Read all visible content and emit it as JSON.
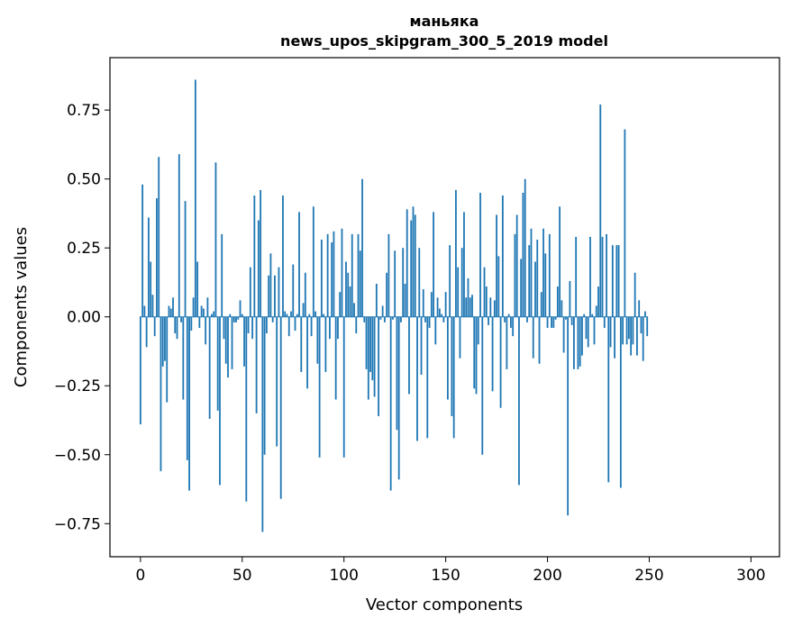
{
  "chart_data": {
    "type": "bar",
    "title": "маньяка",
    "subtitle": "news_upos_skipgram_300_5_2019 model",
    "xlabel": "Vector components",
    "ylabel": "Components values",
    "xlim": [
      -15,
      314
    ],
    "ylim": [
      -0.87,
      0.94
    ],
    "xticks": [
      0,
      50,
      100,
      150,
      200,
      250,
      300
    ],
    "xtick_labels": [
      "0",
      "50",
      "100",
      "150",
      "200",
      "250",
      "300"
    ],
    "yticks": [
      -0.75,
      -0.5,
      -0.25,
      0.0,
      0.25,
      0.5,
      0.75
    ],
    "ytick_labels": [
      "−0.75",
      "−0.50",
      "−0.25",
      "0.00",
      "0.25",
      "0.50",
      "0.75"
    ],
    "bar_color": "#1f77b4",
    "values": [
      -0.39,
      0.48,
      0.04,
      -0.11,
      0.36,
      0.2,
      0.08,
      -0.07,
      0.43,
      0.58,
      -0.56,
      -0.18,
      -0.16,
      -0.31,
      0.04,
      0.03,
      0.07,
      -0.06,
      -0.08,
      0.59,
      -0.02,
      -0.3,
      0.42,
      -0.52,
      -0.63,
      -0.05,
      0.07,
      0.86,
      0.2,
      -0.04,
      0.04,
      0.03,
      -0.1,
      0.07,
      -0.37,
      0.01,
      0.02,
      0.56,
      -0.34,
      -0.61,
      0.3,
      -0.08,
      -0.17,
      -0.22,
      0.01,
      -0.19,
      -0.02,
      -0.02,
      -0.01,
      0.06,
      0.01,
      -0.18,
      -0.67,
      -0.06,
      0.18,
      -0.08,
      0.44,
      -0.35,
      0.35,
      0.46,
      -0.78,
      -0.5,
      -0.06,
      0.15,
      0.23,
      -0.02,
      0.15,
      -0.47,
      0.18,
      -0.66,
      0.44,
      0.02,
      0.01,
      -0.07,
      0.02,
      0.19,
      -0.05,
      0.01,
      0.38,
      -0.2,
      0.05,
      0.16,
      -0.26,
      0.01,
      -0.07,
      0.4,
      0.02,
      -0.17,
      -0.51,
      0.28,
      0.01,
      -0.2,
      0.3,
      -0.08,
      0.27,
      0.31,
      -0.3,
      -0.08,
      0.09,
      0.32,
      -0.51,
      0.2,
      0.16,
      0.11,
      0.3,
      0.05,
      -0.06,
      0.3,
      0.24,
      0.5,
      -0.02,
      -0.19,
      -0.3,
      -0.2,
      -0.23,
      -0.29,
      0.12,
      -0.36,
      -0.01,
      0.04,
      -0.02,
      0.16,
      0.3,
      -0.63,
      -0.01,
      0.24,
      -0.41,
      -0.59,
      -0.02,
      0.25,
      0.12,
      0.39,
      -0.28,
      0.35,
      0.4,
      0.37,
      -0.45,
      0.25,
      -0.21,
      0.1,
      -0.02,
      -0.44,
      -0.04,
      0.09,
      0.38,
      -0.1,
      0.07,
      0.03,
      0.01,
      -0.02,
      0.09,
      -0.3,
      0.26,
      -0.36,
      -0.44,
      0.46,
      0.18,
      -0.15,
      0.25,
      0.38,
      0.07,
      0.14,
      0.07,
      0.08,
      -0.26,
      -0.28,
      -0.1,
      0.45,
      -0.5,
      0.18,
      0.11,
      -0.03,
      0.07,
      -0.27,
      0.06,
      0.37,
      0.22,
      -0.33,
      0.44,
      -0.02,
      -0.19,
      0.01,
      -0.04,
      -0.07,
      0.3,
      0.37,
      -0.61,
      0.21,
      0.45,
      0.5,
      -0.02,
      0.26,
      0.32,
      -0.15,
      0.2,
      0.28,
      -0.17,
      0.09,
      0.32,
      0.23,
      -0.04,
      0.3,
      -0.04,
      -0.04,
      -0.01,
      0.11,
      0.4,
      0.06,
      -0.13,
      -0.01,
      -0.72,
      0.13,
      -0.03,
      -0.19,
      0.29,
      -0.19,
      -0.18,
      -0.14,
      0.01,
      -0.08,
      -0.11,
      0.29,
      0.01,
      -0.1,
      0.04,
      0.11,
      0.77,
      0.29,
      -0.04,
      0.3,
      -0.6,
      -0.11,
      0.26,
      -0.15,
      0.26,
      0.26,
      -0.62,
      -0.1,
      0.68,
      -0.1,
      -0.08,
      -0.14,
      -0.1,
      0.16,
      -0.14,
      0.06,
      -0.06,
      -0.16,
      0.02,
      -0.07
    ]
  }
}
